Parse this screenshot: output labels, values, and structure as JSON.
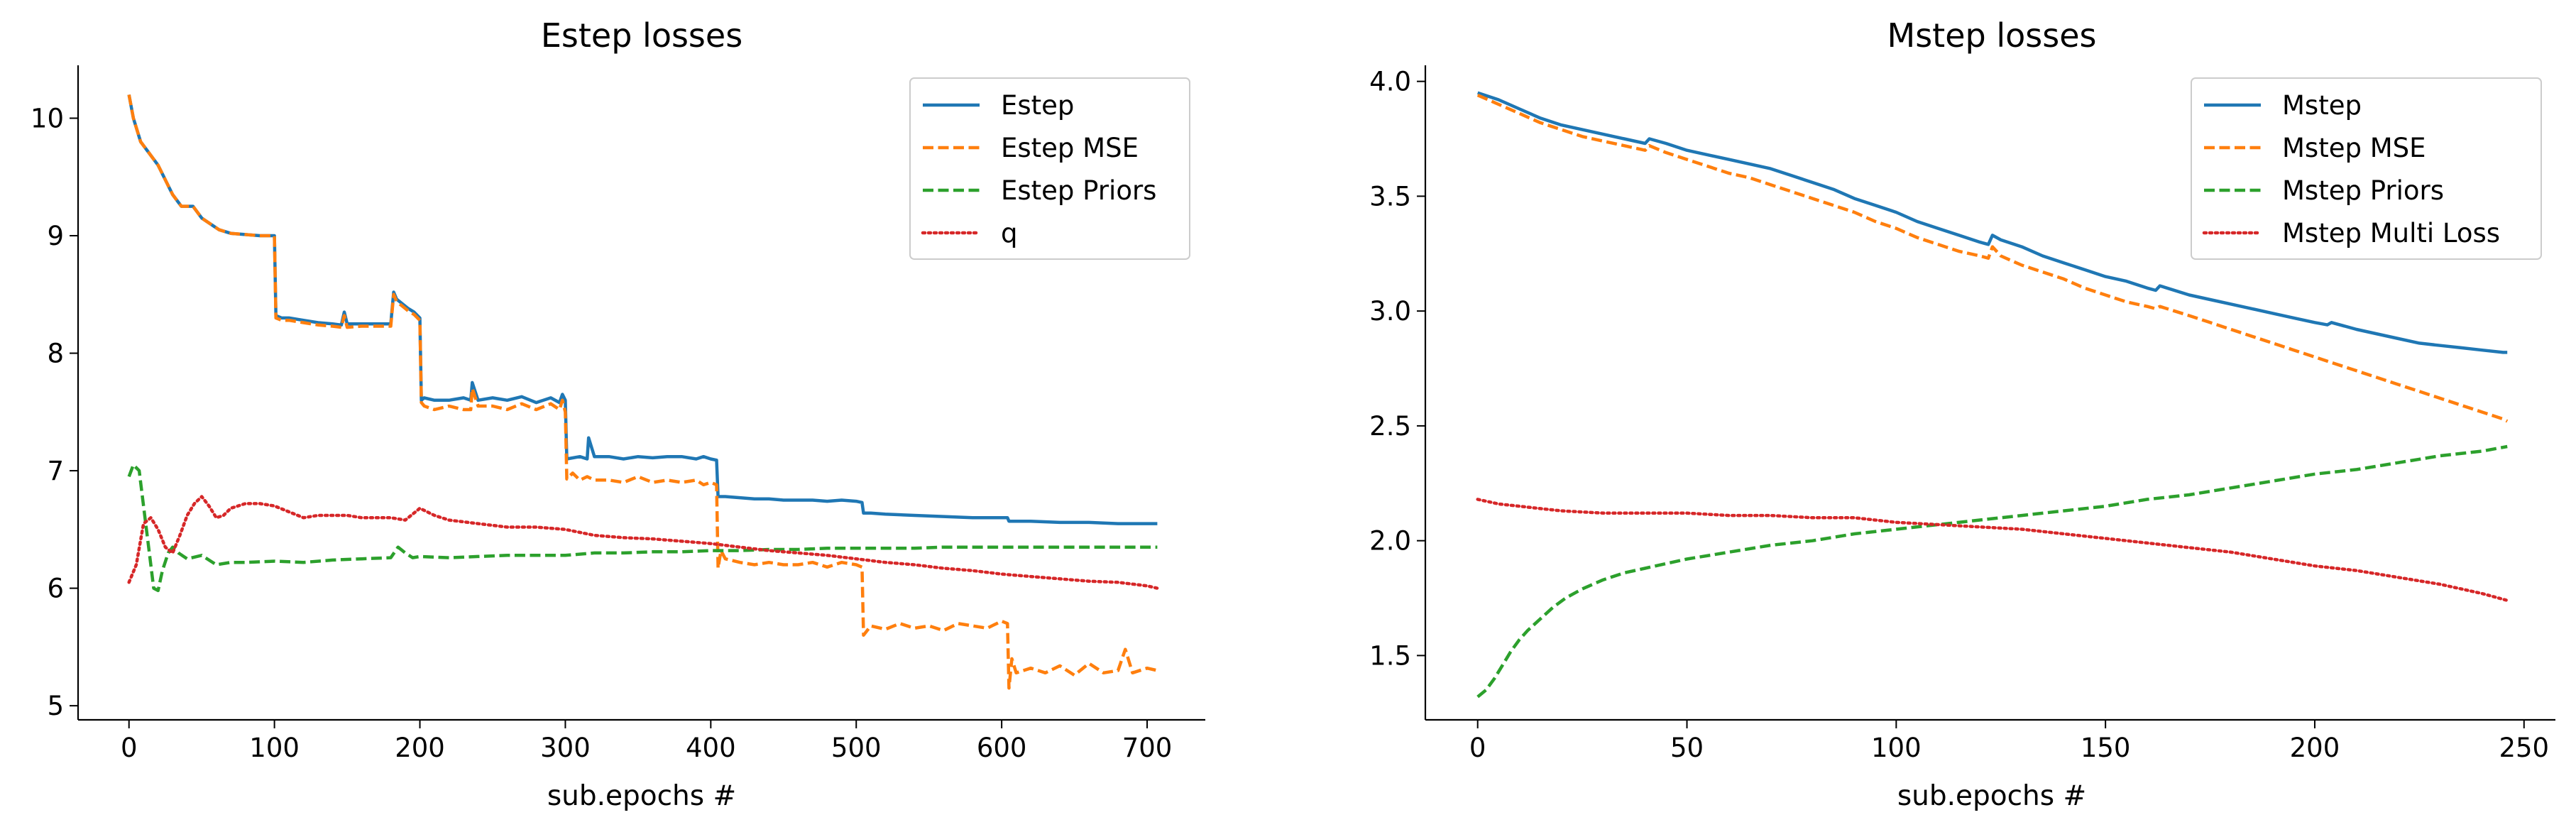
{
  "chart_data": [
    {
      "type": "line",
      "title": "Estep losses",
      "xlabel": "sub.epochs #",
      "ylabel": "",
      "xlim": [
        -35,
        740
      ],
      "ylim": [
        4.88,
        10.45
      ],
      "xticks": [
        0,
        100,
        200,
        300,
        400,
        500,
        600,
        700
      ],
      "xtick_labels": [
        "0",
        "100",
        "200",
        "300",
        "400",
        "500",
        "600",
        "700"
      ],
      "yticks": [
        5,
        6,
        7,
        8,
        9,
        10
      ],
      "ytick_labels": [
        "5",
        "6",
        "7",
        "8",
        "9",
        "10"
      ],
      "grid": false,
      "legend_position": "top-right",
      "series": [
        {
          "name": "Estep",
          "color": "#1f77b4",
          "style": "solid",
          "x": [
            0,
            3,
            8,
            14,
            20,
            24,
            30,
            36,
            44,
            50,
            56,
            62,
            70,
            80,
            90,
            100,
            101,
            105,
            110,
            120,
            130,
            140,
            146,
            148,
            150,
            160,
            170,
            180,
            182,
            184,
            188,
            192,
            196,
            200,
            201,
            203,
            210,
            220,
            230,
            235,
            236,
            240,
            250,
            260,
            270,
            280,
            290,
            296,
            298,
            300,
            301,
            310,
            315,
            316,
            320,
            330,
            340,
            350,
            360,
            370,
            380,
            390,
            395,
            400,
            404,
            405,
            410,
            420,
            430,
            440,
            450,
            460,
            470,
            480,
            490,
            500,
            504,
            505,
            510,
            520,
            540,
            560,
            580,
            600,
            604,
            605,
            620,
            640,
            660,
            680,
            700,
            707
          ],
          "y": [
            10.2,
            10.0,
            9.8,
            9.7,
            9.6,
            9.5,
            9.35,
            9.25,
            9.25,
            9.15,
            9.1,
            9.05,
            9.02,
            9.01,
            9.0,
            9.0,
            8.32,
            8.3,
            8.3,
            8.28,
            8.26,
            8.25,
            8.24,
            8.35,
            8.25,
            8.25,
            8.25,
            8.25,
            8.52,
            8.46,
            8.42,
            8.38,
            8.35,
            8.3,
            7.6,
            7.62,
            7.6,
            7.6,
            7.62,
            7.6,
            7.75,
            7.6,
            7.62,
            7.6,
            7.63,
            7.58,
            7.62,
            7.58,
            7.65,
            7.6,
            7.1,
            7.12,
            7.1,
            7.28,
            7.12,
            7.12,
            7.1,
            7.12,
            7.11,
            7.12,
            7.12,
            7.1,
            7.12,
            7.1,
            7.09,
            6.78,
            6.78,
            6.77,
            6.76,
            6.76,
            6.75,
            6.75,
            6.75,
            6.74,
            6.75,
            6.74,
            6.73,
            6.64,
            6.64,
            6.63,
            6.62,
            6.61,
            6.6,
            6.6,
            6.6,
            6.57,
            6.57,
            6.56,
            6.56,
            6.55,
            6.55,
            6.55
          ]
        },
        {
          "name": "Estep MSE",
          "color": "#ff7f0e",
          "style": "dashed",
          "x": [
            0,
            3,
            8,
            14,
            20,
            24,
            30,
            36,
            44,
            50,
            56,
            62,
            70,
            80,
            90,
            100,
            101,
            105,
            110,
            120,
            130,
            140,
            146,
            148,
            150,
            160,
            170,
            180,
            182,
            184,
            188,
            192,
            196,
            200,
            201,
            203,
            210,
            220,
            230,
            235,
            236,
            240,
            250,
            260,
            270,
            280,
            290,
            296,
            298,
            300,
            301,
            305,
            310,
            315,
            320,
            330,
            340,
            350,
            360,
            370,
            380,
            390,
            395,
            400,
            404,
            405,
            407,
            410,
            420,
            430,
            440,
            450,
            460,
            470,
            480,
            490,
            500,
            504,
            505,
            510,
            520,
            530,
            540,
            550,
            560,
            570,
            580,
            590,
            600,
            604,
            605,
            607,
            610,
            620,
            630,
            640,
            650,
            660,
            670,
            680,
            685,
            690,
            700,
            707
          ],
          "y": [
            10.2,
            10.0,
            9.8,
            9.7,
            9.6,
            9.5,
            9.35,
            9.25,
            9.25,
            9.15,
            9.1,
            9.05,
            9.02,
            9.01,
            9.0,
            9.0,
            8.3,
            8.28,
            8.28,
            8.26,
            8.24,
            8.23,
            8.22,
            8.32,
            8.22,
            8.23,
            8.23,
            8.23,
            8.5,
            8.44,
            8.4,
            8.36,
            8.33,
            8.28,
            7.58,
            7.55,
            7.52,
            7.55,
            7.52,
            7.52,
            7.7,
            7.55,
            7.55,
            7.52,
            7.57,
            7.52,
            7.57,
            7.52,
            7.6,
            7.5,
            6.93,
            6.98,
            6.92,
            6.95,
            6.92,
            6.92,
            6.9,
            6.95,
            6.9,
            6.92,
            6.9,
            6.92,
            6.88,
            6.9,
            6.88,
            6.17,
            6.32,
            6.25,
            6.22,
            6.2,
            6.22,
            6.2,
            6.2,
            6.22,
            6.18,
            6.22,
            6.2,
            6.18,
            5.6,
            5.68,
            5.65,
            5.7,
            5.66,
            5.68,
            5.64,
            5.7,
            5.68,
            5.66,
            5.72,
            5.7,
            5.15,
            5.4,
            5.28,
            5.32,
            5.28,
            5.34,
            5.26,
            5.36,
            5.28,
            5.3,
            5.48,
            5.28,
            5.32,
            5.3
          ]
        },
        {
          "name": "Estep Priors",
          "color": "#2ca02c",
          "style": "dashed",
          "x": [
            0,
            3,
            7,
            10,
            14,
            17,
            20,
            23,
            27,
            30,
            34,
            40,
            50,
            60,
            70,
            80,
            100,
            120,
            140,
            160,
            180,
            185,
            190,
            195,
            200,
            220,
            240,
            260,
            280,
            300,
            320,
            340,
            360,
            380,
            400,
            420,
            440,
            460,
            480,
            500,
            520,
            540,
            560,
            580,
            600,
            620,
            640,
            660,
            680,
            700,
            707
          ],
          "y": [
            6.95,
            7.05,
            7.0,
            6.7,
            6.3,
            6.0,
            5.98,
            6.15,
            6.3,
            6.35,
            6.3,
            6.25,
            6.28,
            6.2,
            6.22,
            6.22,
            6.23,
            6.22,
            6.24,
            6.25,
            6.26,
            6.35,
            6.3,
            6.26,
            6.27,
            6.26,
            6.27,
            6.28,
            6.28,
            6.28,
            6.3,
            6.3,
            6.31,
            6.31,
            6.32,
            6.32,
            6.33,
            6.33,
            6.34,
            6.34,
            6.34,
            6.34,
            6.35,
            6.35,
            6.35,
            6.35,
            6.35,
            6.35,
            6.35,
            6.35,
            6.35
          ]
        },
        {
          "name": "q",
          "color": "#d62728",
          "style": "dotted",
          "x": [
            0,
            5,
            10,
            15,
            20,
            25,
            30,
            35,
            40,
            45,
            50,
            55,
            60,
            65,
            70,
            80,
            90,
            100,
            110,
            120,
            130,
            140,
            150,
            160,
            170,
            180,
            190,
            200,
            210,
            220,
            240,
            260,
            280,
            300,
            320,
            340,
            360,
            380,
            400,
            420,
            440,
            460,
            480,
            500,
            520,
            540,
            560,
            580,
            600,
            620,
            640,
            660,
            680,
            700,
            707
          ],
          "y": [
            6.05,
            6.2,
            6.55,
            6.6,
            6.5,
            6.35,
            6.3,
            6.45,
            6.62,
            6.72,
            6.78,
            6.7,
            6.6,
            6.62,
            6.68,
            6.72,
            6.72,
            6.7,
            6.65,
            6.6,
            6.62,
            6.62,
            6.62,
            6.6,
            6.6,
            6.6,
            6.58,
            6.68,
            6.62,
            6.58,
            6.55,
            6.52,
            6.52,
            6.5,
            6.45,
            6.43,
            6.42,
            6.4,
            6.38,
            6.35,
            6.32,
            6.3,
            6.28,
            6.25,
            6.22,
            6.2,
            6.17,
            6.15,
            6.12,
            6.1,
            6.08,
            6.06,
            6.05,
            6.02,
            6.0
          ]
        }
      ]
    },
    {
      "type": "line",
      "title": "Mstep losses",
      "xlabel": "sub.epochs #",
      "ylabel": "",
      "xlim": [
        -12.5,
        257.5
      ],
      "ylim": [
        1.22,
        4.07
      ],
      "xticks": [
        0,
        50,
        100,
        150,
        200,
        250
      ],
      "xtick_labels": [
        "0",
        "50",
        "100",
        "150",
        "200",
        "250"
      ],
      "yticks": [
        1.5,
        2.0,
        2.5,
        3.0,
        3.5,
        4.0
      ],
      "ytick_labels": [
        "1.5",
        "2.0",
        "2.5",
        "3.0",
        "3.5",
        "4.0"
      ],
      "grid": false,
      "legend_position": "top-right",
      "series": [
        {
          "name": "Mstep",
          "color": "#1f77b4",
          "style": "solid",
          "x": [
            0,
            5,
            10,
            15,
            20,
            25,
            30,
            35,
            40,
            41,
            45,
            50,
            55,
            60,
            65,
            70,
            75,
            80,
            85,
            90,
            95,
            100,
            105,
            110,
            115,
            120,
            122,
            123,
            125,
            130,
            135,
            140,
            145,
            150,
            155,
            160,
            162,
            163,
            170,
            175,
            180,
            185,
            190,
            195,
            200,
            203,
            204,
            210,
            215,
            220,
            225,
            230,
            235,
            240,
            245,
            246
          ],
          "y": [
            3.95,
            3.92,
            3.88,
            3.84,
            3.81,
            3.79,
            3.77,
            3.75,
            3.73,
            3.75,
            3.73,
            3.7,
            3.68,
            3.66,
            3.64,
            3.62,
            3.59,
            3.56,
            3.53,
            3.49,
            3.46,
            3.43,
            3.39,
            3.36,
            3.33,
            3.3,
            3.29,
            3.33,
            3.31,
            3.28,
            3.24,
            3.21,
            3.18,
            3.15,
            3.13,
            3.1,
            3.09,
            3.11,
            3.07,
            3.05,
            3.03,
            3.01,
            2.99,
            2.97,
            2.95,
            2.94,
            2.95,
            2.92,
            2.9,
            2.88,
            2.86,
            2.85,
            2.84,
            2.83,
            2.82,
            2.82
          ]
        },
        {
          "name": "Mstep MSE",
          "color": "#ff7f0e",
          "style": "dashed",
          "x": [
            0,
            5,
            10,
            15,
            20,
            25,
            30,
            35,
            40,
            41,
            45,
            50,
            55,
            60,
            65,
            70,
            75,
            80,
            85,
            90,
            95,
            100,
            105,
            110,
            115,
            120,
            122,
            123,
            125,
            130,
            135,
            140,
            145,
            150,
            155,
            160,
            162,
            163,
            170,
            175,
            180,
            185,
            190,
            195,
            200,
            205,
            210,
            215,
            220,
            225,
            230,
            235,
            240,
            245,
            246
          ],
          "y": [
            3.94,
            3.9,
            3.86,
            3.82,
            3.79,
            3.76,
            3.74,
            3.72,
            3.7,
            3.72,
            3.69,
            3.66,
            3.63,
            3.6,
            3.58,
            3.55,
            3.52,
            3.49,
            3.46,
            3.43,
            3.39,
            3.36,
            3.32,
            3.29,
            3.26,
            3.24,
            3.23,
            3.28,
            3.24,
            3.2,
            3.17,
            3.14,
            3.1,
            3.07,
            3.04,
            3.02,
            3.01,
            3.02,
            2.98,
            2.95,
            2.92,
            2.89,
            2.86,
            2.83,
            2.8,
            2.77,
            2.74,
            2.71,
            2.68,
            2.65,
            2.62,
            2.59,
            2.56,
            2.53,
            2.52
          ]
        },
        {
          "name": "Mstep Priors",
          "color": "#2ca02c",
          "style": "dashed",
          "x": [
            0,
            2,
            4,
            6,
            8,
            10,
            12,
            15,
            18,
            21,
            25,
            30,
            35,
            40,
            45,
            50,
            60,
            70,
            80,
            90,
            100,
            110,
            120,
            130,
            140,
            150,
            160,
            170,
            180,
            190,
            200,
            210,
            220,
            230,
            240,
            246
          ],
          "y": [
            1.32,
            1.35,
            1.4,
            1.46,
            1.52,
            1.57,
            1.61,
            1.66,
            1.71,
            1.75,
            1.79,
            1.83,
            1.86,
            1.88,
            1.9,
            1.92,
            1.95,
            1.98,
            2.0,
            2.03,
            2.05,
            2.07,
            2.09,
            2.11,
            2.13,
            2.15,
            2.18,
            2.2,
            2.23,
            2.26,
            2.29,
            2.31,
            2.34,
            2.37,
            2.39,
            2.41
          ]
        },
        {
          "name": "Mstep Multi Loss",
          "color": "#d62728",
          "style": "dotted",
          "x": [
            0,
            5,
            10,
            15,
            20,
            30,
            40,
            50,
            60,
            70,
            80,
            90,
            100,
            110,
            120,
            130,
            140,
            150,
            160,
            170,
            180,
            190,
            200,
            210,
            220,
            230,
            240,
            246
          ],
          "y": [
            2.18,
            2.16,
            2.15,
            2.14,
            2.13,
            2.12,
            2.12,
            2.12,
            2.11,
            2.11,
            2.1,
            2.1,
            2.08,
            2.07,
            2.06,
            2.05,
            2.03,
            2.01,
            1.99,
            1.97,
            1.95,
            1.92,
            1.89,
            1.87,
            1.84,
            1.81,
            1.77,
            1.74
          ]
        }
      ]
    }
  ]
}
